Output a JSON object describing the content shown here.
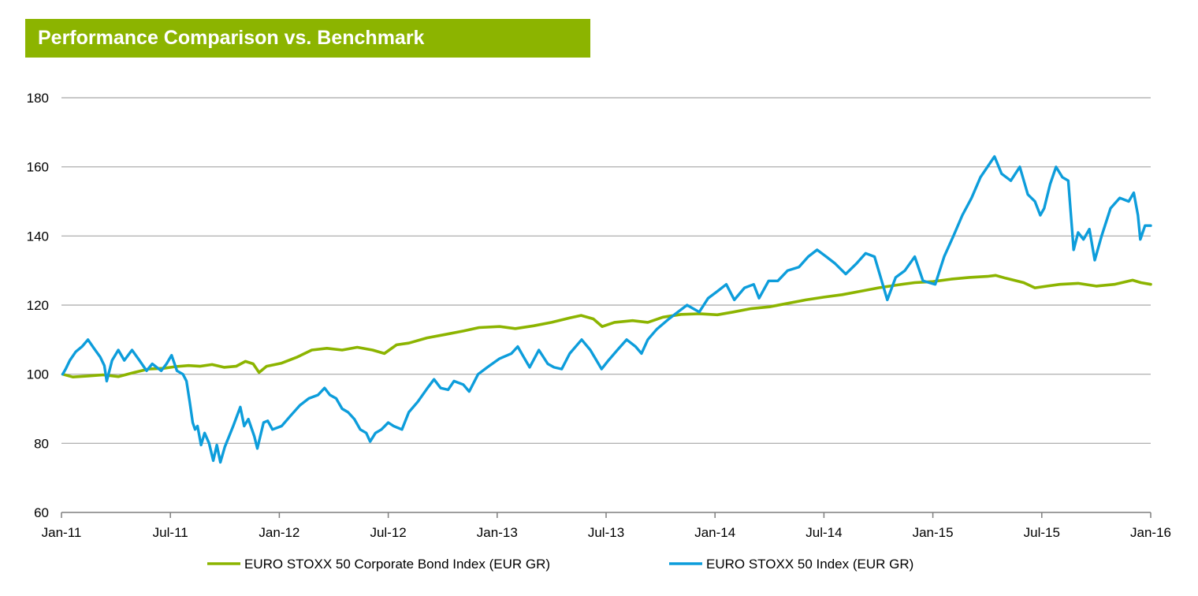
{
  "chart_data": {
    "type": "line",
    "title": "Performance Comparison vs. Benchmark",
    "xlabel": "",
    "ylabel": "",
    "ylim": [
      60,
      180
    ],
    "yticks": [
      60,
      80,
      100,
      120,
      140,
      160,
      180
    ],
    "xlim": [
      "2011-01",
      "2016-01"
    ],
    "x_tick_labels": [
      "Jan-11",
      "Jul-11",
      "Jan-12",
      "Jul-12",
      "Jan-13",
      "Jul-13",
      "Jan-14",
      "Jul-14",
      "Jan-15",
      "Jul-15",
      "Jan-16"
    ],
    "grid": "horizontal",
    "legend_position": "bottom",
    "colors": {
      "bond": "#8cb400",
      "index": "#0d9ddb",
      "title_bg": "#8cb400",
      "grid": "#a6a6a6"
    },
    "series": [
      {
        "name": "EURO STOXX 50 Corporate Bond Index (EUR GR)",
        "color": "#8cb400",
        "points": [
          [
            "2011-01-03",
            100
          ],
          [
            "2011-01-20",
            99.2
          ],
          [
            "2011-02-15",
            99.5
          ],
          [
            "2011-03-10",
            99.8
          ],
          [
            "2011-04-05",
            99.3
          ],
          [
            "2011-05-01",
            100.5
          ],
          [
            "2011-05-25",
            101.5
          ],
          [
            "2011-06-20",
            101.7
          ],
          [
            "2011-07-10",
            102.2
          ],
          [
            "2011-08-01",
            102.5
          ],
          [
            "2011-08-20",
            102.3
          ],
          [
            "2011-09-10",
            102.8
          ],
          [
            "2011-09-30",
            102.0
          ],
          [
            "2011-10-20",
            102.3
          ],
          [
            "2011-11-05",
            103.7
          ],
          [
            "2011-11-18",
            103.0
          ],
          [
            "2011-11-28",
            100.5
          ],
          [
            "2011-12-10",
            102.3
          ],
          [
            "2012-01-05",
            103.2
          ],
          [
            "2012-02-01",
            105.0
          ],
          [
            "2012-02-25",
            107.0
          ],
          [
            "2012-03-20",
            107.5
          ],
          [
            "2012-04-15",
            107.0
          ],
          [
            "2012-05-10",
            107.8
          ],
          [
            "2012-06-05",
            107.0
          ],
          [
            "2012-06-25",
            106.0
          ],
          [
            "2012-07-15",
            108.5
          ],
          [
            "2012-08-05",
            109.0
          ],
          [
            "2012-09-05",
            110.5
          ],
          [
            "2012-10-05",
            111.5
          ],
          [
            "2012-11-05",
            112.5
          ],
          [
            "2012-12-01",
            113.5
          ],
          [
            "2013-01-05",
            113.8
          ],
          [
            "2013-02-01",
            113.2
          ],
          [
            "2013-03-01",
            114.0
          ],
          [
            "2013-04-01",
            115.0
          ],
          [
            "2013-05-01",
            116.3
          ],
          [
            "2013-05-20",
            117.0
          ],
          [
            "2013-06-10",
            116.0
          ],
          [
            "2013-06-25",
            113.8
          ],
          [
            "2013-07-15",
            115.0
          ],
          [
            "2013-08-15",
            115.5
          ],
          [
            "2013-09-10",
            115.0
          ],
          [
            "2013-10-05",
            116.5
          ],
          [
            "2013-11-05",
            117.3
          ],
          [
            "2013-12-05",
            117.5
          ],
          [
            "2014-01-05",
            117.2
          ],
          [
            "2014-02-01",
            118.0
          ],
          [
            "2014-03-01",
            119.0
          ],
          [
            "2014-04-01",
            119.5
          ],
          [
            "2014-05-01",
            120.5
          ],
          [
            "2014-06-01",
            121.5
          ],
          [
            "2014-07-01",
            122.3
          ],
          [
            "2014-08-01",
            123.0
          ],
          [
            "2014-09-01",
            124.0
          ],
          [
            "2014-10-01",
            125.0
          ],
          [
            "2014-11-01",
            125.8
          ],
          [
            "2014-12-01",
            126.5
          ],
          [
            "2015-01-01",
            126.8
          ],
          [
            "2015-02-01",
            127.5
          ],
          [
            "2015-03-01",
            128.0
          ],
          [
            "2015-04-01",
            128.3
          ],
          [
            "2015-04-15",
            128.6
          ],
          [
            "2015-05-01",
            127.8
          ],
          [
            "2015-06-01",
            126.5
          ],
          [
            "2015-06-20",
            125.0
          ],
          [
            "2015-07-10",
            125.5
          ],
          [
            "2015-08-01",
            126.0
          ],
          [
            "2015-09-01",
            126.3
          ],
          [
            "2015-10-01",
            125.5
          ],
          [
            "2015-11-01",
            126.0
          ],
          [
            "2015-12-01",
            127.2
          ],
          [
            "2015-12-15",
            126.5
          ],
          [
            "2016-01-01",
            126.0
          ]
        ]
      },
      {
        "name": "EURO STOXX 50 Index (EUR GR)",
        "color": "#0d9ddb",
        "points": [
          [
            "2011-01-03",
            100
          ],
          [
            "2011-01-08",
            101.5
          ],
          [
            "2011-01-15",
            104
          ],
          [
            "2011-01-25",
            106.5
          ],
          [
            "2011-02-05",
            108
          ],
          [
            "2011-02-15",
            110
          ],
          [
            "2011-02-25",
            107.5
          ],
          [
            "2011-03-05",
            105
          ],
          [
            "2011-03-12",
            102.5
          ],
          [
            "2011-03-16",
            98
          ],
          [
            "2011-03-25",
            104
          ],
          [
            "2011-04-05",
            107
          ],
          [
            "2011-04-15",
            104
          ],
          [
            "2011-04-28",
            107
          ],
          [
            "2011-05-10",
            104
          ],
          [
            "2011-05-22",
            101
          ],
          [
            "2011-06-01",
            103
          ],
          [
            "2011-06-16",
            101
          ],
          [
            "2011-06-25",
            103
          ],
          [
            "2011-07-03",
            105.5
          ],
          [
            "2011-07-12",
            101
          ],
          [
            "2011-07-22",
            100
          ],
          [
            "2011-07-28",
            98
          ],
          [
            "2011-08-03",
            92
          ],
          [
            "2011-08-08",
            86
          ],
          [
            "2011-08-12",
            84
          ],
          [
            "2011-08-16",
            85
          ],
          [
            "2011-08-22",
            79.5
          ],
          [
            "2011-08-28",
            83
          ],
          [
            "2011-09-05",
            80
          ],
          [
            "2011-09-12",
            75
          ],
          [
            "2011-09-18",
            79.5
          ],
          [
            "2011-09-24",
            74.5
          ],
          [
            "2011-10-01",
            79
          ],
          [
            "2011-10-08",
            82
          ],
          [
            "2011-10-15",
            85
          ],
          [
            "2011-10-27",
            90.5
          ],
          [
            "2011-11-03",
            85
          ],
          [
            "2011-11-10",
            87
          ],
          [
            "2011-11-20",
            82
          ],
          [
            "2011-11-25",
            78.5
          ],
          [
            "2011-12-05",
            86
          ],
          [
            "2011-12-12",
            86.5
          ],
          [
            "2011-12-20",
            84
          ],
          [
            "2012-01-05",
            85
          ],
          [
            "2012-01-20",
            88
          ],
          [
            "2012-02-05",
            91
          ],
          [
            "2012-02-20",
            93
          ],
          [
            "2012-03-05",
            94
          ],
          [
            "2012-03-16",
            96
          ],
          [
            "2012-03-25",
            94
          ],
          [
            "2012-04-05",
            93
          ],
          [
            "2012-04-15",
            90
          ],
          [
            "2012-04-25",
            89
          ],
          [
            "2012-05-05",
            87
          ],
          [
            "2012-05-15",
            84
          ],
          [
            "2012-05-25",
            83
          ],
          [
            "2012-06-01",
            80.5
          ],
          [
            "2012-06-10",
            83
          ],
          [
            "2012-06-20",
            84
          ],
          [
            "2012-07-01",
            86
          ],
          [
            "2012-07-10",
            85
          ],
          [
            "2012-07-24",
            84
          ],
          [
            "2012-08-05",
            89
          ],
          [
            "2012-08-20",
            92
          ],
          [
            "2012-09-06",
            96
          ],
          [
            "2012-09-17",
            98.5
          ],
          [
            "2012-09-28",
            96
          ],
          [
            "2012-10-10",
            95.5
          ],
          [
            "2012-10-20",
            98
          ],
          [
            "2012-11-05",
            97
          ],
          [
            "2012-11-15",
            95
          ],
          [
            "2012-11-30",
            100
          ],
          [
            "2012-12-15",
            102
          ],
          [
            "2013-01-05",
            104.5
          ],
          [
            "2013-01-25",
            106
          ],
          [
            "2013-02-05",
            108
          ],
          [
            "2013-02-15",
            105
          ],
          [
            "2013-02-25",
            102
          ],
          [
            "2013-03-10",
            107
          ],
          [
            "2013-03-25",
            103
          ],
          [
            "2013-04-05",
            102
          ],
          [
            "2013-04-18",
            101.5
          ],
          [
            "2013-05-01",
            106
          ],
          [
            "2013-05-21",
            110
          ],
          [
            "2013-06-05",
            107
          ],
          [
            "2013-06-24",
            101.5
          ],
          [
            "2013-07-05",
            104
          ],
          [
            "2013-07-20",
            107
          ],
          [
            "2013-08-05",
            110
          ],
          [
            "2013-08-20",
            108
          ],
          [
            "2013-08-30",
            106
          ],
          [
            "2013-09-10",
            110
          ],
          [
            "2013-09-25",
            113
          ],
          [
            "2013-10-15",
            116
          ],
          [
            "2013-10-30",
            118
          ],
          [
            "2013-11-15",
            120
          ],
          [
            "2013-12-05",
            118
          ],
          [
            "2013-12-20",
            122
          ],
          [
            "2014-01-05",
            124
          ],
          [
            "2014-01-20",
            126
          ],
          [
            "2014-02-03",
            121.5
          ],
          [
            "2014-02-20",
            125
          ],
          [
            "2014-03-05",
            126
          ],
          [
            "2014-03-14",
            122
          ],
          [
            "2014-03-30",
            127
          ],
          [
            "2014-04-15",
            127
          ],
          [
            "2014-05-01",
            130
          ],
          [
            "2014-05-20",
            131
          ],
          [
            "2014-06-05",
            134
          ],
          [
            "2014-06-20",
            136
          ],
          [
            "2014-07-05",
            134
          ],
          [
            "2014-07-20",
            132
          ],
          [
            "2014-08-07",
            129
          ],
          [
            "2014-08-25",
            132
          ],
          [
            "2014-09-10",
            135
          ],
          [
            "2014-09-25",
            134
          ],
          [
            "2014-10-16",
            121.5
          ],
          [
            "2014-10-30",
            128
          ],
          [
            "2014-11-15",
            130
          ],
          [
            "2014-12-01",
            134
          ],
          [
            "2014-12-15",
            127
          ],
          [
            "2015-01-05",
            126
          ],
          [
            "2015-01-20",
            134
          ],
          [
            "2015-02-05",
            140
          ],
          [
            "2015-02-20",
            146
          ],
          [
            "2015-03-05",
            151
          ],
          [
            "2015-03-20",
            157
          ],
          [
            "2015-04-13",
            163
          ],
          [
            "2015-04-25",
            158
          ],
          [
            "2015-05-10",
            156
          ],
          [
            "2015-05-25",
            160
          ],
          [
            "2015-06-08",
            152
          ],
          [
            "2015-06-20",
            150
          ],
          [
            "2015-06-29",
            146
          ],
          [
            "2015-07-05",
            148
          ],
          [
            "2015-07-15",
            155
          ],
          [
            "2015-07-25",
            160
          ],
          [
            "2015-08-05",
            157
          ],
          [
            "2015-08-15",
            156
          ],
          [
            "2015-08-24",
            136
          ],
          [
            "2015-09-01",
            141
          ],
          [
            "2015-09-10",
            139
          ],
          [
            "2015-09-20",
            142
          ],
          [
            "2015-09-29",
            133
          ],
          [
            "2015-10-10",
            140
          ],
          [
            "2015-10-25",
            148
          ],
          [
            "2015-11-10",
            151
          ],
          [
            "2015-11-25",
            150
          ],
          [
            "2015-12-03",
            152.5
          ],
          [
            "2015-12-10",
            146
          ],
          [
            "2015-12-14",
            139
          ],
          [
            "2015-12-22",
            143
          ],
          [
            "2016-01-01",
            143
          ]
        ]
      }
    ]
  }
}
